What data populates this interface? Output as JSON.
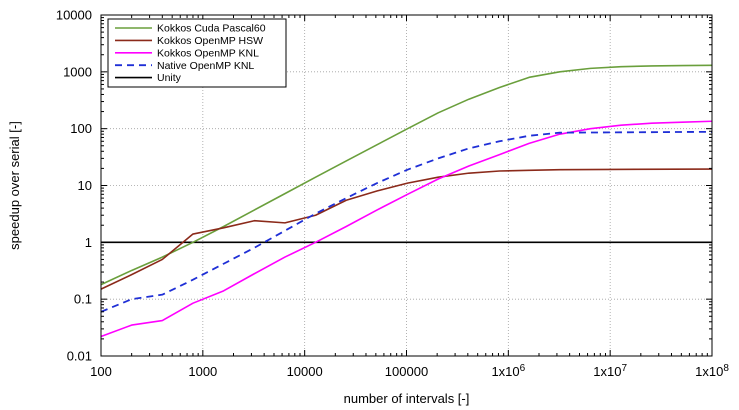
{
  "chart_data": {
    "type": "line",
    "xlabel": "number of intervals [-]",
    "ylabel": "speedup over serial [-]",
    "xscale": "log",
    "yscale": "log",
    "xlim": [
      100,
      100000000
    ],
    "ylim": [
      0.01,
      10000
    ],
    "grid": true,
    "legend_position": "top-left",
    "x_tick_labels": [
      "100",
      "1000",
      "10000",
      "100000",
      "1x10^6",
      "1x10^7",
      "1x10^8"
    ],
    "y_tick_labels": [
      "0.01",
      "0.1",
      "1",
      "10",
      "100",
      "1000",
      "10000"
    ],
    "series": [
      {
        "name": "Kokkos Cuda Pascal60",
        "color": "#6a9f3c",
        "style": "solid",
        "x": [
          100,
          200,
          400,
          800,
          1600,
          3200,
          6400,
          12800,
          25600,
          51200,
          102400,
          204800,
          409600,
          819200,
          1600000,
          3200000,
          6400000,
          12800000,
          25600000,
          51200000,
          100000000
        ],
        "y": [
          0.18,
          0.32,
          0.55,
          1.0,
          1.9,
          3.7,
          7.2,
          14,
          27,
          52,
          100,
          190,
          330,
          530,
          800,
          1000,
          1150,
          1230,
          1270,
          1290,
          1300
        ]
      },
      {
        "name": "Kokkos OpenMP HSW",
        "color": "#8b2a1a",
        "style": "solid",
        "x": [
          100,
          200,
          400,
          800,
          1600,
          3200,
          6400,
          12800,
          25600,
          51200,
          102400,
          204800,
          409600,
          819200,
          1600000,
          3200000,
          100000000
        ],
        "y": [
          0.15,
          0.27,
          0.5,
          1.4,
          1.8,
          2.4,
          2.2,
          3.0,
          5.5,
          8.0,
          11,
          14,
          16.5,
          18,
          18.5,
          19,
          19.5
        ]
      },
      {
        "name": "Kokkos OpenMP KNL",
        "color": "#ff00ff",
        "style": "solid",
        "x": [
          100,
          200,
          400,
          800,
          1600,
          3200,
          6400,
          12800,
          25600,
          51200,
          102400,
          204800,
          409600,
          819200,
          1600000,
          3200000,
          6400000,
          12800000,
          25600000,
          51200000,
          100000000
        ],
        "y": [
          0.022,
          0.035,
          0.042,
          0.085,
          0.14,
          0.28,
          0.55,
          1.0,
          1.9,
          3.7,
          7.0,
          13,
          22,
          35,
          55,
          80,
          100,
          115,
          125,
          130,
          135
        ]
      },
      {
        "name": "Native OpenMP KNL",
        "color": "#1f2fd6",
        "style": "dashed",
        "x": [
          100,
          200,
          400,
          800,
          1600,
          3200,
          6400,
          12800,
          25600,
          51200,
          102400,
          204800,
          409600,
          819200,
          1600000,
          3200000,
          100000000
        ],
        "y": [
          0.06,
          0.1,
          0.12,
          0.22,
          0.42,
          0.8,
          1.6,
          3.2,
          6,
          11,
          19,
          30,
          45,
          60,
          75,
          85,
          88
        ]
      },
      {
        "name": "Unity",
        "color": "#000000",
        "style": "solid",
        "x": [
          100,
          100000000
        ],
        "y": [
          1,
          1
        ]
      }
    ]
  }
}
